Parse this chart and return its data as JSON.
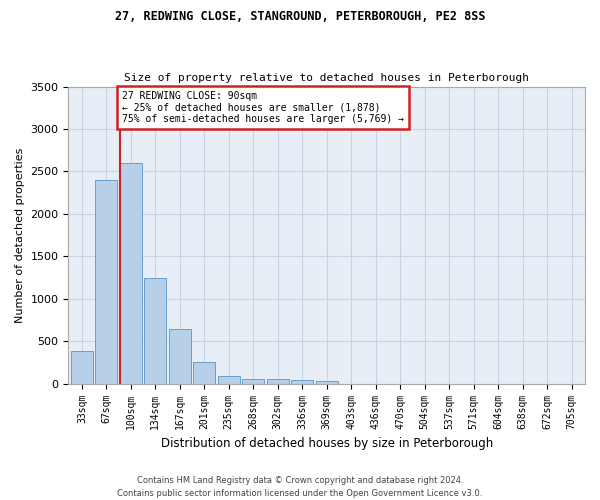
{
  "title_line1": "27, REDWING CLOSE, STANGROUND, PETERBOROUGH, PE2 8SS",
  "title_line2": "Size of property relative to detached houses in Peterborough",
  "xlabel": "Distribution of detached houses by size in Peterborough",
  "ylabel": "Number of detached properties",
  "categories": [
    "33sqm",
    "67sqm",
    "100sqm",
    "134sqm",
    "167sqm",
    "201sqm",
    "235sqm",
    "268sqm",
    "302sqm",
    "336sqm",
    "369sqm",
    "403sqm",
    "436sqm",
    "470sqm",
    "504sqm",
    "537sqm",
    "571sqm",
    "604sqm",
    "638sqm",
    "672sqm",
    "705sqm"
  ],
  "values": [
    390,
    2400,
    2600,
    1240,
    640,
    255,
    95,
    60,
    55,
    40,
    30,
    0,
    0,
    0,
    0,
    0,
    0,
    0,
    0,
    0,
    0
  ],
  "bar_color": "#b8cfe8",
  "bar_edge_color": "#6aa0cc",
  "property_sqm": 90,
  "percentile_smaller": 25,
  "count_smaller": 1878,
  "percentile_larger": 75,
  "count_larger": 5769,
  "vline_color": "#cc2222",
  "annotation_box_edge_color": "#cc2222",
  "background_color": "#ffffff",
  "plot_bg_color": "#e8eef5",
  "grid_color": "#c8d4e4",
  "footer_text": "Contains HM Land Registry data © Crown copyright and database right 2024.\nContains public sector information licensed under the Open Government Licence v3.0.",
  "ylim": [
    0,
    3500
  ],
  "yticks": [
    0,
    500,
    1000,
    1500,
    2000,
    2500,
    3000,
    3500
  ]
}
